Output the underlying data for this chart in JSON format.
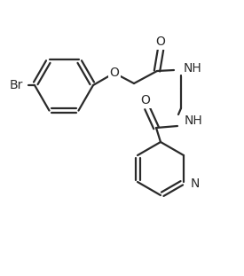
{
  "bg": "#ffffff",
  "lc": "#2a2a2a",
  "lw": 1.6,
  "fs": 10,
  "figsize": [
    2.75,
    3.11
  ],
  "dpi": 100,
  "xlim": [
    0,
    275
  ],
  "ylim": [
    0,
    311
  ]
}
